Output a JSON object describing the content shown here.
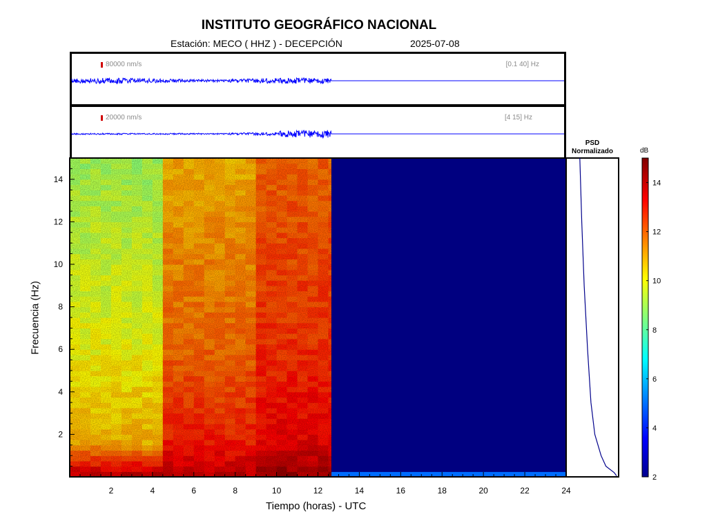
{
  "header": {
    "title": "INSTITUTO GEOGRÁFICO NACIONAL",
    "station_line": "Estación:  MECO ( HHZ ) - DECEPCIÓN",
    "date": "2025-07-08"
  },
  "traces": [
    {
      "scale": "80000 nm/s",
      "band": "[0.1 40] Hz",
      "color": "#0000ff"
    },
    {
      "scale": "20000 nm/s",
      "band": "[4 15] Hz",
      "color": "#0000ff"
    }
  ],
  "psd": {
    "title_line1": "PSD",
    "title_line2": "Normalizado",
    "color": "#00008b"
  },
  "colorbar": {
    "unit": "dB",
    "ticks": [
      "2",
      "4",
      "6",
      "8",
      "10",
      "12",
      "14"
    ],
    "range": [
      2,
      15
    ]
  },
  "chart_data": {
    "type": "heatmap",
    "xlabel": "Tiempo (horas) - UTC",
    "ylabel": "Frecuencia  (Hz)",
    "xlim": [
      0,
      24
    ],
    "ylim": [
      0,
      15
    ],
    "x_ticks": [
      2,
      4,
      6,
      8,
      10,
      12,
      14,
      16,
      18,
      20,
      22,
      24
    ],
    "y_ticks": [
      2,
      4,
      6,
      8,
      10,
      12,
      14
    ],
    "data_end_hour": 12.65,
    "segments": [
      {
        "from_hour": 0.0,
        "to_hour": 4.5,
        "high_freq_db": 9,
        "mid_freq_db": 11,
        "low_freq_db": 14
      },
      {
        "from_hour": 4.5,
        "to_hour": 9.0,
        "high_freq_db": 11,
        "mid_freq_db": 13,
        "low_freq_db": 14
      },
      {
        "from_hour": 9.0,
        "to_hour": 12.65,
        "high_freq_db": 12,
        "mid_freq_db": 13.5,
        "low_freq_db": 14.5
      },
      {
        "from_hour": 12.65,
        "to_hour": 24.0,
        "high_freq_db": 2,
        "mid_freq_db": 2,
        "low_freq_db": 2
      }
    ],
    "psd_profile": [
      {
        "freq_hz": 15.0,
        "value": 0.24
      },
      {
        "freq_hz": 12.0,
        "value": 0.28
      },
      {
        "freq_hz": 9.0,
        "value": 0.33
      },
      {
        "freq_hz": 6.0,
        "value": 0.4
      },
      {
        "freq_hz": 3.5,
        "value": 0.47
      },
      {
        "freq_hz": 2.0,
        "value": 0.55
      },
      {
        "freq_hz": 1.0,
        "value": 0.68
      },
      {
        "freq_hz": 0.5,
        "value": 0.78
      },
      {
        "freq_hz": 0.2,
        "value": 0.95
      },
      {
        "freq_hz": 0.05,
        "value": 1.0
      }
    ]
  }
}
